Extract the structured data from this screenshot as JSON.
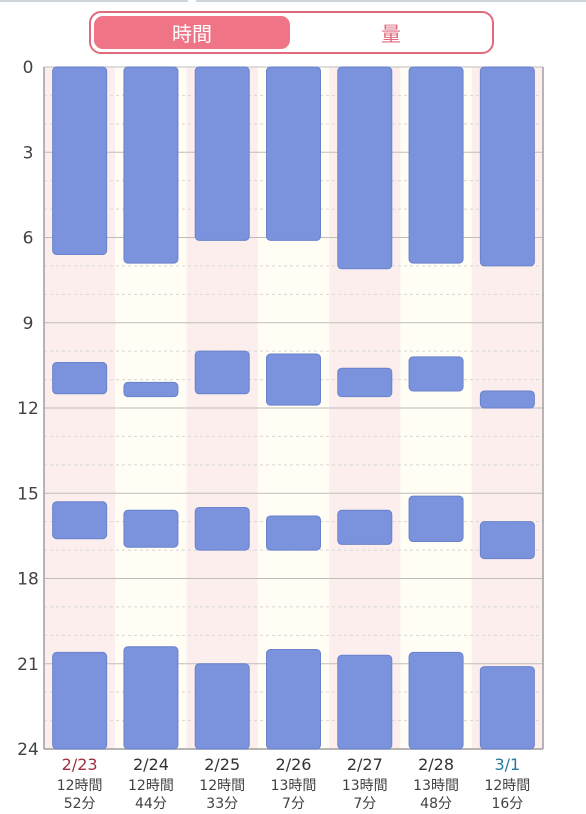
{
  "tabs": {
    "active_label": "時間",
    "inactive_label": "量"
  },
  "chart_data": {
    "type": "bar",
    "orientation": "vertical-timeline",
    "ylim": [
      0,
      24
    ],
    "y_ticks": [
      "0",
      "3",
      "6",
      "9",
      "12",
      "15",
      "18",
      "21",
      "24"
    ],
    "categories": [
      "2/23",
      "2/24",
      "2/25",
      "2/26",
      "2/27",
      "2/28",
      "3/1"
    ],
    "category_colors": [
      "#a03040",
      "#333333",
      "#333333",
      "#333333",
      "#333333",
      "#333333",
      "#2a7a9e"
    ],
    "totals": [
      [
        "12時間",
        "52分"
      ],
      [
        "12時間",
        "44分"
      ],
      [
        "12時間",
        "33分"
      ],
      [
        "13時間",
        "7分"
      ],
      [
        "13時間",
        "7分"
      ],
      [
        "13時間",
        "48分"
      ],
      [
        "12時間",
        "16分"
      ]
    ],
    "series_color": "#7b93dd",
    "segments": [
      [
        [
          0,
          6.6
        ],
        [
          10.4,
          11.5
        ],
        [
          15.3,
          16.6
        ],
        [
          20.6,
          24
        ]
      ],
      [
        [
          0,
          6.9
        ],
        [
          11.1,
          11.6
        ],
        [
          15.6,
          16.9
        ],
        [
          20.4,
          24
        ]
      ],
      [
        [
          0,
          6.1
        ],
        [
          10.0,
          11.5
        ],
        [
          15.5,
          17.0
        ],
        [
          21.0,
          24
        ]
      ],
      [
        [
          0,
          6.1
        ],
        [
          10.1,
          11.9
        ],
        [
          15.8,
          17.0
        ],
        [
          20.5,
          24
        ]
      ],
      [
        [
          0,
          7.1
        ],
        [
          10.6,
          11.6
        ],
        [
          15.6,
          16.8
        ],
        [
          20.7,
          24
        ]
      ],
      [
        [
          0,
          6.9
        ],
        [
          10.2,
          11.4
        ],
        [
          15.1,
          16.7
        ],
        [
          20.6,
          24
        ]
      ],
      [
        [
          0,
          7.0
        ],
        [
          11.4,
          12.0
        ],
        [
          16.0,
          17.3
        ],
        [
          21.1,
          24
        ]
      ]
    ],
    "grid": true
  }
}
